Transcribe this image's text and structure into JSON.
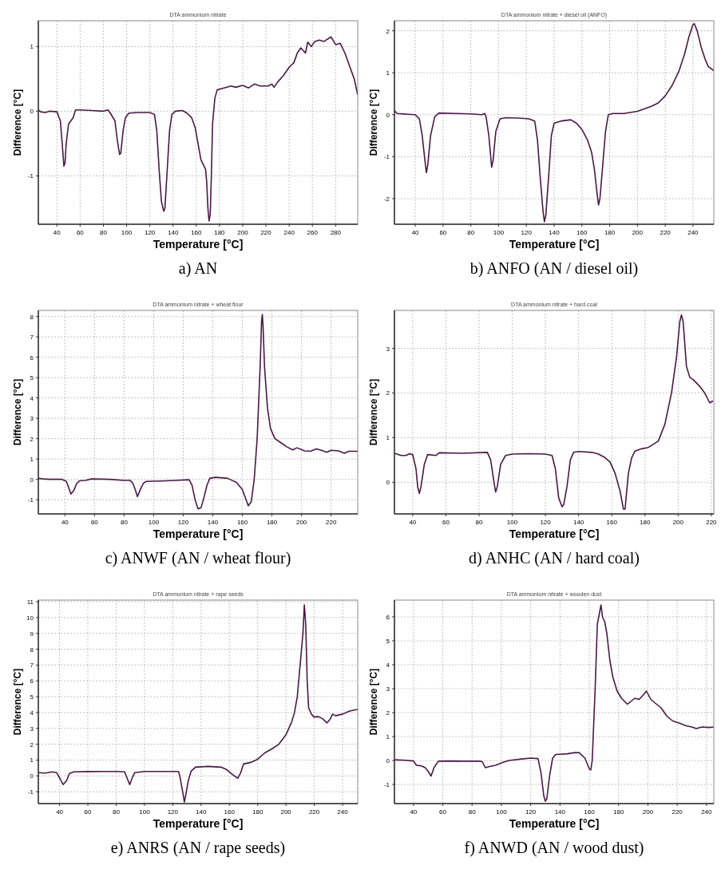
{
  "chart_data": [
    {
      "type": "line",
      "title": "DTA  ammonium nitrate",
      "xlabel": "Temperature [°C]",
      "ylabel": "Difference [°C]",
      "annotations": [
        "a) AN"
      ],
      "grid": true,
      "xlim": [
        24,
        299
      ],
      "ylim": [
        -1.75,
        1.4
      ],
      "xticks": [
        40,
        60,
        80,
        100,
        120,
        140,
        160,
        180,
        200,
        220,
        240,
        260,
        280
      ],
      "yticks": [
        -1,
        0,
        1
      ],
      "x": [
        24,
        26,
        30,
        34,
        40,
        43,
        45,
        46,
        47,
        48,
        50,
        54,
        56,
        60,
        70,
        80,
        84,
        86,
        90,
        92,
        94,
        95,
        97,
        99,
        102,
        110,
        120,
        124,
        126,
        128,
        130,
        132,
        133,
        135,
        137,
        139,
        142,
        148,
        152,
        156,
        159,
        162,
        164,
        168,
        169,
        170,
        171,
        172,
        173,
        174,
        176,
        178,
        182,
        190,
        194,
        200,
        205,
        210,
        215,
        222,
        225,
        227,
        230,
        235,
        240,
        244,
        247,
        250,
        254,
        256,
        259,
        262,
        266,
        270,
        276,
        280,
        284,
        288,
        292,
        296,
        299
      ],
      "series": [
        {
          "color": "#4a1846",
          "values": [
            0.02,
            -0.01,
            -0.02,
            0,
            -0.01,
            -0.15,
            -0.6,
            -0.85,
            -0.8,
            -0.5,
            -0.2,
            -0.1,
            0.02,
            0.02,
            0.01,
            0,
            0.02,
            -0.03,
            -0.15,
            -0.45,
            -0.67,
            -0.65,
            -0.3,
            -0.1,
            -0.03,
            -0.02,
            -0.02,
            -0.05,
            -0.3,
            -0.9,
            -1.4,
            -1.55,
            -1.5,
            -0.9,
            -0.3,
            -0.05,
            0,
            0.01,
            -0.03,
            -0.1,
            -0.25,
            -0.55,
            -0.75,
            -0.9,
            -1.1,
            -1.5,
            -1.7,
            -1.6,
            -1,
            -0.2,
            0.2,
            0.33,
            0.35,
            0.39,
            0.37,
            0.4,
            0.36,
            0.42,
            0.39,
            0.39,
            0.42,
            0.37,
            0.45,
            0.55,
            0.68,
            0.75,
            0.9,
            0.98,
            0.9,
            1.07,
            1,
            1.08,
            1.1,
            1.08,
            1.15,
            1.03,
            1.05,
            0.9,
            0.7,
            0.5,
            0.25
          ]
        }
      ]
    },
    {
      "type": "line",
      "title": "DTA ammonium nitrate + diesel oil (ANFO)",
      "xlabel": "Temperature [°C]",
      "ylabel": "Difference [°C]",
      "annotations": [
        "b) ANFO (AN / diesel oil)"
      ],
      "grid": true,
      "xlim": [
        25,
        255
      ],
      "ylim": [
        -2.61,
        2.24
      ],
      "xticks": [
        40,
        60,
        80,
        100,
        120,
        140,
        160,
        180,
        200,
        220,
        240
      ],
      "yticks": [
        -2,
        -1,
        0,
        1,
        2
      ],
      "x": [
        25,
        27,
        35,
        40,
        43,
        45,
        47,
        48,
        49,
        51,
        54,
        57,
        70,
        80,
        88,
        90,
        91,
        93,
        95,
        96,
        98,
        101,
        105,
        115,
        122,
        126,
        128,
        130,
        132,
        133,
        134,
        136,
        138,
        140,
        145,
        152,
        156,
        160,
        164,
        167,
        169,
        171,
        172,
        173,
        175,
        177,
        179,
        182,
        190,
        200,
        210,
        215,
        220,
        225,
        230,
        234,
        237,
        240,
        241,
        243,
        246,
        249,
        251,
        255
      ],
      "series": [
        {
          "color": "#4a1846",
          "values": [
            0.1,
            0.03,
            0.01,
            0,
            -0.1,
            -0.5,
            -1.1,
            -1.38,
            -1.2,
            -0.5,
            -0.05,
            0.04,
            0.03,
            0.02,
            0,
            0.03,
            -0.05,
            -0.5,
            -1.25,
            -1.1,
            -0.4,
            -0.1,
            -0.07,
            -0.08,
            -0.1,
            -0.15,
            -0.6,
            -1.5,
            -2.3,
            -2.55,
            -2.4,
            -1.5,
            -0.5,
            -0.2,
            -0.15,
            -0.12,
            -0.2,
            -0.35,
            -0.6,
            -0.9,
            -1.3,
            -1.9,
            -2.15,
            -2,
            -1.2,
            -0.4,
            0,
            0.03,
            0.03,
            0.08,
            0.2,
            0.28,
            0.45,
            0.7,
            1.05,
            1.45,
            1.85,
            2.15,
            2.17,
            2,
            1.6,
            1.3,
            1.15,
            1.05
          ]
        }
      ]
    },
    {
      "type": "line",
      "title": "DTA ammonium nitrate + wheat flour",
      "xlabel": "Temperature [°C]",
      "ylabel": "Difference [°C]",
      "annotations": [
        "c) ANWF (AN / wheat flour)"
      ],
      "grid": true,
      "xlim": [
        22,
        238
      ],
      "ylim": [
        -1.7,
        8.3
      ],
      "xticks": [
        40,
        60,
        80,
        100,
        120,
        140,
        160,
        180,
        200,
        220
      ],
      "yticks": [
        -1,
        0,
        1,
        2,
        3,
        4,
        5,
        6,
        7,
        8
      ],
      "x": [
        22,
        25,
        30,
        38,
        41,
        43,
        44,
        46,
        48,
        50,
        54,
        58,
        70,
        80,
        84,
        86,
        88,
        89,
        91,
        93,
        95,
        105,
        115,
        124,
        126,
        128,
        130,
        132,
        134,
        136,
        138,
        142,
        150,
        156,
        160,
        163,
        164,
        166,
        168,
        170,
        172,
        173,
        173.5,
        174,
        175,
        177,
        179,
        182,
        186,
        190,
        194,
        197,
        202,
        206,
        210,
        214,
        217,
        220,
        225,
        229,
        232,
        238
      ],
      "series": [
        {
          "color": "#4a1846",
          "values": [
            0.05,
            0.02,
            0,
            0,
            -0.1,
            -0.5,
            -0.72,
            -0.55,
            -0.2,
            -0.07,
            -0.05,
            0.02,
            0,
            -0.05,
            -0.05,
            -0.2,
            -0.6,
            -0.85,
            -0.5,
            -0.2,
            -0.1,
            -0.08,
            -0.05,
            -0.02,
            -0.3,
            -1,
            -1.45,
            -1.4,
            -0.9,
            -0.3,
            0.05,
            0.1,
            0.05,
            -0.15,
            -0.5,
            -1.1,
            -1.3,
            -1.1,
            0,
            2,
            5.5,
            7.8,
            8.1,
            7.5,
            5.5,
            3.5,
            2.5,
            2,
            1.8,
            1.6,
            1.45,
            1.55,
            1.4,
            1.38,
            1.5,
            1.42,
            1.33,
            1.43,
            1.4,
            1.28,
            1.38,
            1.38
          ]
        }
      ]
    },
    {
      "type": "line",
      "title": "DTA ammonium nitrate + hard coal",
      "xlabel": "Temperature [°C]",
      "ylabel": "Difference [°C]",
      "annotations": [
        "d) ANHC (AN / hard coal)"
      ],
      "grid": true,
      "xlim": [
        29,
        221.5
      ],
      "ylim": [
        -0.71,
        3.85
      ],
      "xticks": [
        40,
        60,
        80,
        100,
        120,
        140,
        160,
        180,
        200,
        220
      ],
      "yticks": [
        0,
        1,
        2,
        3
      ],
      "x": [
        29,
        33,
        36,
        38,
        40,
        42,
        43,
        44,
        45,
        47,
        49,
        54,
        56,
        70,
        85,
        87,
        89,
        90,
        91,
        93,
        96,
        100,
        110,
        120,
        124,
        126,
        128,
        130,
        131,
        133,
        135,
        137,
        140,
        148,
        152,
        156,
        159,
        162,
        165,
        167,
        168,
        170,
        172,
        174,
        178,
        182,
        188,
        192,
        196,
        199,
        201,
        202,
        203,
        205,
        207,
        209,
        213,
        216,
        219,
        221
      ],
      "series": [
        {
          "color": "#4a1846",
          "values": [
            0.65,
            0.6,
            0.6,
            0.64,
            0.62,
            0.3,
            -0.1,
            -0.25,
            -0.1,
            0.4,
            0.62,
            0.6,
            0.66,
            0.65,
            0.67,
            0.5,
            0,
            -0.22,
            -0.1,
            0.4,
            0.6,
            0.63,
            0.64,
            0.63,
            0.6,
            0.3,
            -0.35,
            -0.55,
            -0.5,
            -0.1,
            0.5,
            0.67,
            0.69,
            0.67,
            0.63,
            0.55,
            0.45,
            0.2,
            -0.2,
            -0.6,
            -0.6,
            0.2,
            0.55,
            0.7,
            0.75,
            0.78,
            0.92,
            1.3,
            2,
            2.8,
            3.6,
            3.75,
            3.6,
            2.6,
            2.35,
            2.3,
            2.15,
            2,
            1.78,
            1.82
          ]
        }
      ]
    },
    {
      "type": "line",
      "title": "DTA ammonium nitrate + rape seeds",
      "xlabel": "Temperature [°C]",
      "ylabel": "Difference [°C]",
      "annotations": [
        "e) ANRS (AN / rape seeds)"
      ],
      "grid": true,
      "xlim": [
        25,
        250.7
      ],
      "ylim": [
        -1.75,
        11.1
      ],
      "xticks": [
        40,
        60,
        80,
        100,
        120,
        140,
        160,
        180,
        200,
        220,
        240
      ],
      "yticks": [
        -1,
        0,
        1,
        2,
        3,
        4,
        5,
        6,
        7,
        8,
        9,
        10,
        11
      ],
      "x": [
        25,
        30,
        35,
        38,
        40.5,
        42.5,
        45,
        47,
        50,
        60,
        70,
        80,
        86,
        88,
        89.6,
        91,
        93,
        100,
        110,
        124,
        125,
        127,
        128.2,
        129,
        131,
        133,
        136,
        145,
        154,
        158,
        162,
        166,
        168,
        170,
        175,
        180,
        185,
        190,
        195,
        200,
        204,
        206,
        208,
        210,
        212,
        213,
        214,
        215,
        216,
        217,
        218,
        220,
        222,
        224,
        226,
        229,
        231,
        233,
        235,
        240,
        245,
        250.7
      ],
      "series": [
        {
          "color": "#4a1846",
          "values": [
            0.2,
            0.18,
            0.25,
            0.2,
            -0.2,
            -0.55,
            -0.3,
            0.15,
            0.25,
            0.27,
            0.28,
            0.28,
            0.25,
            -0.2,
            -0.55,
            -0.2,
            0.2,
            0.28,
            0.28,
            0.28,
            0,
            -1,
            -1.65,
            -1.3,
            -0.3,
            0.3,
            0.55,
            0.6,
            0.55,
            0.4,
            0.1,
            -0.15,
            0.2,
            0.75,
            0.85,
            1.05,
            1.45,
            1.7,
            2,
            2.6,
            3.4,
            4,
            5,
            7,
            9,
            10.8,
            9.5,
            6,
            4.3,
            4.1,
            3.9,
            3.7,
            3.75,
            3.7,
            3.6,
            3.35,
            3.55,
            3.9,
            3.8,
            3.9,
            4.1,
            4.2
          ]
        }
      ]
    },
    {
      "type": "line",
      "title": "DTA ammonium nitrate + wooden dust",
      "xlabel": "Temperature [°C]",
      "ylabel": "Difference [°C]",
      "annotations": [
        "f) ANWD (AN / wood dust)"
      ],
      "grid": true,
      "xlim": [
        27,
        245
      ],
      "ylim": [
        -1.8,
        6.7
      ],
      "xticks": [
        40,
        60,
        80,
        100,
        120,
        140,
        160,
        180,
        200,
        220,
        240
      ],
      "yticks": [
        -1,
        0,
        1,
        2,
        3,
        4,
        5,
        6
      ],
      "x": [
        27,
        35,
        40,
        42,
        45,
        48,
        50,
        52,
        54,
        57,
        65,
        75,
        85,
        87,
        89,
        92,
        96,
        100,
        105,
        115,
        120,
        125,
        127,
        129,
        130,
        131,
        133,
        135,
        137,
        145,
        150,
        153,
        157,
        160,
        161,
        162,
        164,
        165.5,
        168,
        169,
        170.5,
        172,
        174,
        176,
        179,
        182,
        186,
        189,
        191,
        194,
        197,
        199,
        202,
        206,
        209,
        213,
        217,
        222,
        226,
        230,
        233,
        237,
        242,
        245
      ],
      "series": [
        {
          "color": "#4a1846",
          "values": [
            0.03,
            0.01,
            -0.02,
            -0.2,
            -0.22,
            -0.3,
            -0.45,
            -0.65,
            -0.3,
            -0.03,
            -0.02,
            -0.03,
            -0.03,
            -0.05,
            -0.3,
            -0.25,
            -0.2,
            -0.1,
            0,
            0.07,
            0.1,
            0.08,
            -0.5,
            -1.5,
            -1.7,
            -1.6,
            -0.6,
            0.1,
            0.25,
            0.28,
            0.33,
            0.33,
            0.1,
            -0.35,
            -0.4,
            0,
            3,
            5.7,
            6.5,
            6,
            5.8,
            5.3,
            4.2,
            3.5,
            2.9,
            2.6,
            2.35,
            2.5,
            2.6,
            2.55,
            2.75,
            2.9,
            2.55,
            2.35,
            2.2,
            1.85,
            1.65,
            1.55,
            1.45,
            1.4,
            1.33,
            1.4,
            1.38,
            1.4
          ]
        }
      ]
    }
  ]
}
